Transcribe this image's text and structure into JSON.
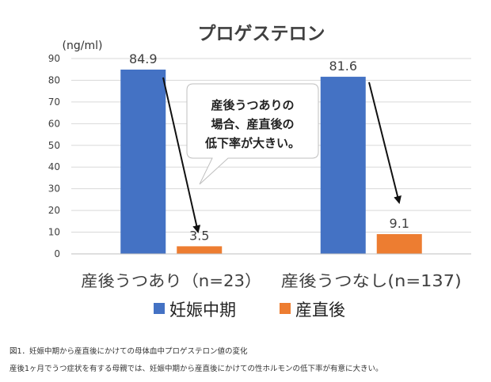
{
  "chart_data": {
    "type": "bar",
    "title": "プロゲステロン",
    "ylabel": "(ng/ml)",
    "xlabel": "",
    "ylim": [
      0,
      90
    ],
    "yticks": [
      0,
      10,
      20,
      30,
      40,
      50,
      60,
      70,
      80,
      90
    ],
    "grid": true,
    "legend_position": "bottom",
    "categories": [
      "産後うつあり（n=23）",
      "産後うつなし(n=137)"
    ],
    "series": [
      {
        "name": "妊娠中期",
        "color": "#4472C4",
        "values": [
          84.9,
          81.6
        ]
      },
      {
        "name": "産直後",
        "color": "#ED7D31",
        "values": [
          3.5,
          9.1
        ]
      }
    ],
    "annotation": "産後うつありの\n場合、産直後の\n低下率が大きい。"
  },
  "caption": {
    "line1": "図1．妊娠中期から産直後にかけての母体血中プロゲステロン値の変化",
    "line2": "産後1ヶ月でうつ症状を有する母親では、妊娠中期から産直後にかけての性ホルモンの低下率が有意に大きい。"
  }
}
